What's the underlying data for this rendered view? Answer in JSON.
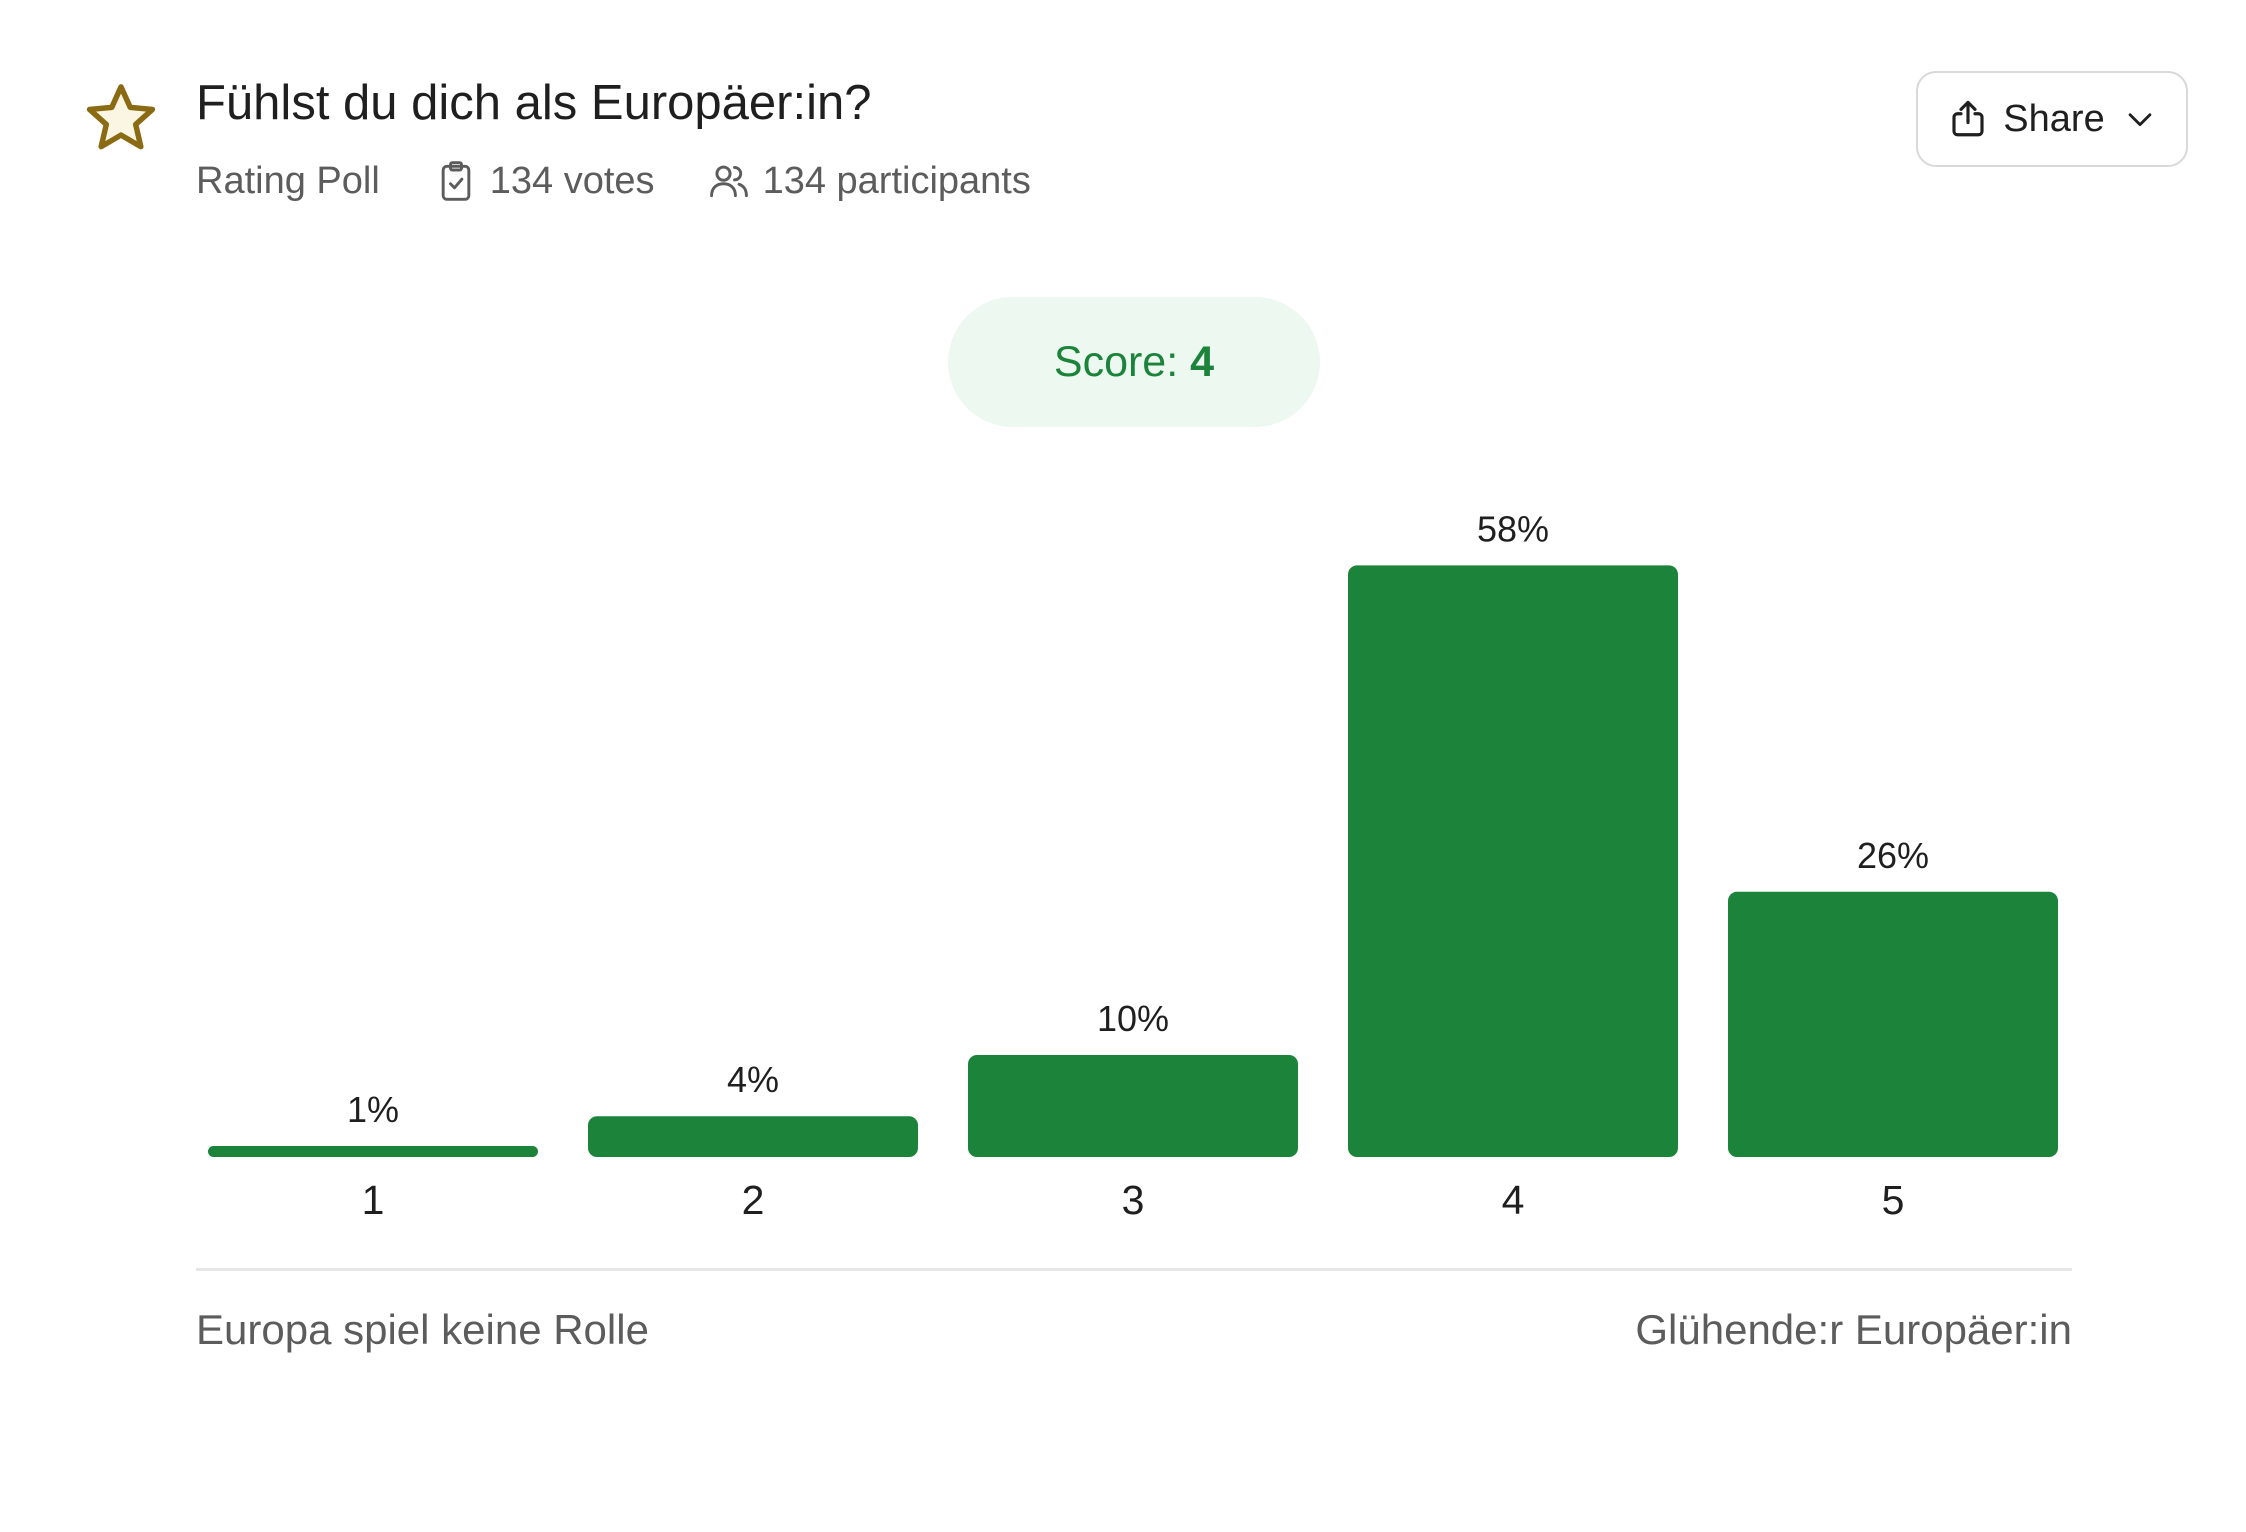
{
  "poll": {
    "icon": "star-icon",
    "title": "Fühlst du dich als Europäer:in?",
    "type_label": "Rating Poll",
    "votes_label": "134 votes",
    "participants_label": "134 participants",
    "share_label": "Share"
  },
  "score": {
    "label": "Score:",
    "value": "4"
  },
  "colors": {
    "bar": "#1b833a",
    "score_text": "#1b833a",
    "score_bg": "#ecf8f0",
    "star": "#8a6a12"
  },
  "scale": {
    "min_label": "Europa spiel keine Rolle",
    "max_label": "Glühende:r Europäer:in"
  },
  "chart_data": {
    "type": "bar",
    "categories": [
      "1",
      "2",
      "3",
      "4",
      "5"
    ],
    "values": [
      1,
      4,
      10,
      58,
      26
    ],
    "value_labels": [
      "1%",
      "4%",
      "10%",
      "58%",
      "26%"
    ],
    "unit": "%",
    "grid": false
  }
}
